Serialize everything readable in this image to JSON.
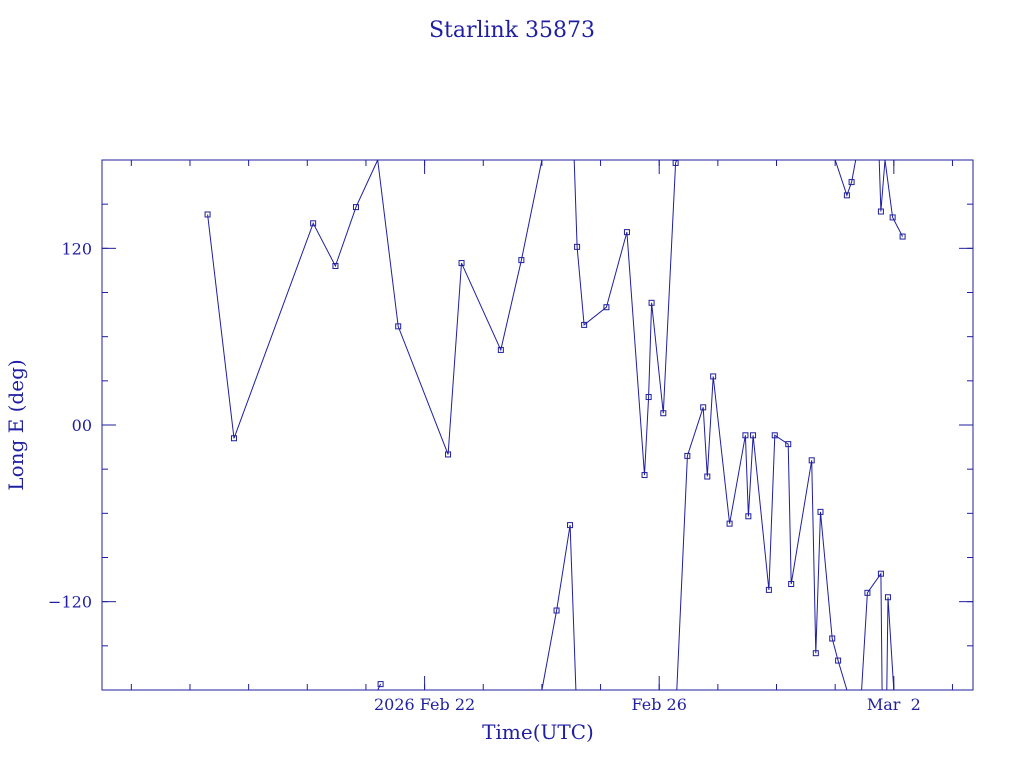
{
  "chart_data": {
    "type": "line",
    "title": "Starlink 35873",
    "xlabel": "Time(UTC)",
    "ylabel": "Long E (deg)",
    "ylim": [
      -180,
      180
    ],
    "y_ticks": [
      {
        "value": 120,
        "label": "120"
      },
      {
        "value": 0,
        "label": "00"
      },
      {
        "value": -120,
        "label": "−120"
      }
    ],
    "x_ticks": [
      {
        "value": 5.0,
        "label": "2026 Feb 22"
      },
      {
        "value": 9.0,
        "label": "Feb 26"
      },
      {
        "value": 13.0,
        "label": "Mar  2"
      }
    ],
    "xlim": [
      -0.5,
      14.35
    ],
    "grid": false,
    "marker": "square",
    "color": "#1f1fa0",
    "x_unit": "days from 2026 Feb 17 00:00 UTC",
    "series": [
      {
        "values": [
          [
            1.3,
            143
          ],
          [
            1.75,
            -9
          ],
          [
            3.1,
            137
          ],
          [
            3.48,
            108
          ],
          [
            3.83,
            148
          ],
          [
            4.2,
            180
          ]
        ]
      },
      {
        "values": [
          [
            4.2,
            -180
          ],
          [
            4.25,
            -176
          ]
        ]
      },
      {
        "values": [
          [
            4.2,
            180
          ],
          [
            4.55,
            67
          ],
          [
            5.4,
            -20
          ],
          [
            5.63,
            110
          ],
          [
            6.3,
            51
          ],
          [
            6.65,
            112
          ],
          [
            7.0,
            180
          ]
        ]
      },
      {
        "values": [
          [
            7.0,
            -180
          ],
          [
            7.25,
            -126
          ],
          [
            7.48,
            -68
          ],
          [
            7.58,
            -180
          ]
        ]
      },
      {
        "values": [
          [
            7.55,
            180
          ],
          [
            7.6,
            121
          ],
          [
            7.72,
            68
          ],
          [
            8.1,
            80
          ],
          [
            8.45,
            131
          ],
          [
            8.75,
            -34
          ],
          [
            8.82,
            19
          ],
          [
            8.87,
            83
          ],
          [
            9.07,
            8
          ],
          [
            9.28,
            178
          ],
          [
            9.3,
            180
          ]
        ]
      },
      {
        "values": [
          [
            9.3,
            -180
          ],
          [
            9.48,
            -21
          ],
          [
            9.75,
            12
          ],
          [
            9.82,
            -35
          ],
          [
            9.92,
            33
          ],
          [
            10.2,
            -67
          ],
          [
            10.47,
            -7
          ],
          [
            10.52,
            -62
          ],
          [
            10.6,
            -7
          ],
          [
            10.87,
            -112
          ],
          [
            10.97,
            -7
          ],
          [
            11.2,
            -13
          ],
          [
            11.25,
            -108
          ],
          [
            11.6,
            -24
          ],
          [
            11.67,
            -155
          ],
          [
            11.75,
            -59
          ],
          [
            11.95,
            -145
          ],
          [
            12.05,
            -160
          ],
          [
            12.2,
            -180
          ]
        ]
      },
      {
        "values": [
          [
            12.45,
            -180
          ],
          [
            12.55,
            -114
          ],
          [
            12.78,
            -101
          ],
          [
            12.8,
            -180
          ]
        ]
      },
      {
        "values": [
          [
            12.88,
            -180
          ],
          [
            12.9,
            -117
          ],
          [
            13.0,
            -180
          ]
        ]
      },
      {
        "values": [
          [
            12.0,
            180
          ],
          [
            12.2,
            156
          ],
          [
            12.28,
            165
          ],
          [
            12.35,
            180
          ]
        ]
      },
      {
        "values": [
          [
            12.75,
            180
          ],
          [
            12.78,
            145
          ],
          [
            12.85,
            180
          ]
        ]
      },
      {
        "values": [
          [
            12.85,
            180
          ],
          [
            12.98,
            141
          ],
          [
            13.15,
            128
          ]
        ]
      }
    ]
  }
}
